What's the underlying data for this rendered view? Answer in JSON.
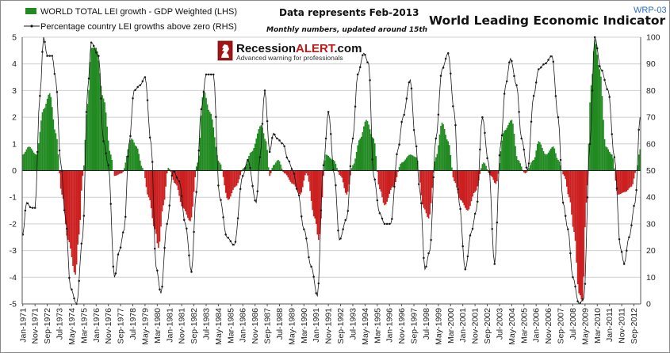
{
  "header": {
    "chart_title": "World Leading Economic Indicator",
    "note_title": "Data represents Feb-2013",
    "note_subtitle": "Monthly numbers, updated around 15th",
    "code": "WRP-03",
    "brand_main": "Recession",
    "brand_accent": "ALERT",
    "brand_suffix": ".com",
    "brand_tagline": "Advanced warning for professionals"
  },
  "colors": {
    "positive": "#218a21",
    "negative": "#cc1f1f",
    "line": "#1a1a1a",
    "grid": "#cfcfcf",
    "code": "#2a6fc4"
  },
  "chart_data": {
    "type": "bar",
    "legend_placement": "top-left",
    "grid": true,
    "series": [
      {
        "name": "WORLD TOTAL LEI growth - GDP Weighted (LHS)",
        "type": "bar",
        "axis": "left",
        "anchors": [
          [
            "1971-01",
            0.6
          ],
          [
            "1971-06",
            0.9
          ],
          [
            "1971-12",
            0.6
          ],
          [
            "1972-06",
            2.3
          ],
          [
            "1972-11",
            2.9
          ],
          [
            "1973-04",
            1.4
          ],
          [
            "1973-09",
            -0.9
          ],
          [
            "1974-02",
            -2.6
          ],
          [
            "1974-08",
            -3.9
          ],
          [
            "1974-11",
            -2.4
          ],
          [
            "1975-02",
            -0.2
          ],
          [
            "1975-06",
            2.5
          ],
          [
            "1975-09",
            4.6
          ],
          [
            "1976-01",
            4.6
          ],
          [
            "1976-07",
            2.7
          ],
          [
            "1977-01",
            0.6
          ],
          [
            "1977-04",
            -0.2
          ],
          [
            "1977-10",
            -0.1
          ],
          [
            "1978-06",
            1.2
          ],
          [
            "1978-10",
            0.9
          ],
          [
            "1979-03",
            0.1
          ],
          [
            "1979-08",
            -1.0
          ],
          [
            "1980-01",
            -2.2
          ],
          [
            "1980-04",
            -2.9
          ],
          [
            "1980-08",
            -1.3
          ],
          [
            "1980-12",
            0.1
          ],
          [
            "1981-06",
            -0.5
          ],
          [
            "1981-12",
            -1.4
          ],
          [
            "1982-06",
            -1.9
          ],
          [
            "1982-12",
            0.3
          ],
          [
            "1983-05",
            3.0
          ],
          [
            "1983-10",
            2.2
          ],
          [
            "1984-06",
            0.3
          ],
          [
            "1985-01",
            -1.1
          ],
          [
            "1985-07",
            -0.6
          ],
          [
            "1986-02",
            0.1
          ],
          [
            "1986-08",
            0.7
          ],
          [
            "1987-04",
            1.7
          ],
          [
            "1987-08",
            1.1
          ],
          [
            "1987-11",
            -0.2
          ],
          [
            "1988-02",
            0.2
          ],
          [
            "1988-06",
            0.4
          ],
          [
            "1988-11",
            -0.1
          ],
          [
            "1989-06",
            -0.5
          ],
          [
            "1989-12",
            -0.9
          ],
          [
            "1990-05",
            -0.1
          ],
          [
            "1990-12",
            -1.8
          ],
          [
            "1991-03",
            -2.6
          ],
          [
            "1991-09",
            0.6
          ],
          [
            "1992-03",
            0.4
          ],
          [
            "1992-09",
            -0.2
          ],
          [
            "1993-02",
            -0.9
          ],
          [
            "1993-07",
            0.2
          ],
          [
            "1994-01",
            1.2
          ],
          [
            "1994-06",
            1.9
          ],
          [
            "1994-12",
            1.2
          ],
          [
            "1995-05",
            -0.7
          ],
          [
            "1995-09",
            -1.3
          ],
          [
            "1996-04",
            -0.6
          ],
          [
            "1996-11",
            0.3
          ],
          [
            "1997-06",
            0.6
          ],
          [
            "1997-11",
            0.5
          ],
          [
            "1998-05",
            -1.4
          ],
          [
            "1998-09",
            -1.8
          ],
          [
            "1999-03",
            0.5
          ],
          [
            "1999-08",
            1.8
          ],
          [
            "2000-01",
            1.1
          ],
          [
            "2000-06",
            -0.4
          ],
          [
            "2000-11",
            -1.1
          ],
          [
            "2001-05",
            -1.5
          ],
          [
            "2001-11",
            -0.8
          ],
          [
            "2002-06",
            0.3
          ],
          [
            "2002-12",
            -0.2
          ],
          [
            "2003-04",
            -0.5
          ],
          [
            "2003-11",
            1.5
          ],
          [
            "2004-05",
            1.9
          ],
          [
            "2004-10",
            0.4
          ],
          [
            "2005-04",
            -0.1
          ],
          [
            "2005-11",
            0.4
          ],
          [
            "2006-03",
            1.1
          ],
          [
            "2006-09",
            0.6
          ],
          [
            "2007-03",
            0.9
          ],
          [
            "2007-07",
            0.4
          ],
          [
            "2007-12",
            -0.2
          ],
          [
            "2008-04",
            -1.0
          ],
          [
            "2008-08",
            -2.3
          ],
          [
            "2008-12",
            -4.6
          ],
          [
            "2009-03",
            -4.9
          ],
          [
            "2009-06",
            -1.2
          ],
          [
            "2009-10",
            3.2
          ],
          [
            "2010-01",
            4.9
          ],
          [
            "2010-05",
            3.8
          ],
          [
            "2010-10",
            0.9
          ],
          [
            "2011-03",
            0.6
          ],
          [
            "2011-08",
            -0.9
          ],
          [
            "2012-02",
            -0.8
          ],
          [
            "2012-07",
            -0.6
          ],
          [
            "2012-11",
            0.0
          ],
          [
            "2013-02",
            0.8
          ]
        ]
      },
      {
        "name": "Percentage country LEI growths above zero (RHS)",
        "type": "line",
        "axis": "right",
        "anchors": [
          [
            "1971-01",
            26
          ],
          [
            "1971-04",
            38
          ],
          [
            "1971-08",
            36
          ],
          [
            "1971-11",
            36
          ],
          [
            "1972-03",
            78
          ],
          [
            "1972-06",
            100
          ],
          [
            "1972-09",
            93
          ],
          [
            "1973-01",
            93
          ],
          [
            "1973-04",
            84
          ],
          [
            "1973-08",
            53
          ],
          [
            "1973-12",
            32
          ],
          [
            "1974-04",
            6
          ],
          [
            "1974-09",
            0
          ],
          [
            "1975-02",
            25
          ],
          [
            "1975-06",
            80
          ],
          [
            "1975-09",
            98
          ],
          [
            "1976-03",
            93
          ],
          [
            "1976-07",
            61
          ],
          [
            "1976-11",
            52
          ],
          [
            "1977-04",
            10
          ],
          [
            "1977-08",
            20
          ],
          [
            "1977-12",
            28
          ],
          [
            "1978-04",
            60
          ],
          [
            "1978-08",
            80
          ],
          [
            "1979-01",
            82
          ],
          [
            "1979-05",
            85
          ],
          [
            "1979-10",
            60
          ],
          [
            "1980-02",
            14
          ],
          [
            "1980-06",
            4
          ],
          [
            "1980-11",
            30
          ],
          [
            "1981-04",
            50
          ],
          [
            "1981-09",
            46
          ],
          [
            "1982-02",
            30
          ],
          [
            "1982-07",
            12
          ],
          [
            "1982-11",
            42
          ],
          [
            "1983-03",
            73
          ],
          [
            "1983-07",
            86
          ],
          [
            "1984-01",
            86
          ],
          [
            "1984-06",
            40
          ],
          [
            "1984-12",
            25
          ],
          [
            "1985-06",
            22
          ],
          [
            "1986-01",
            48
          ],
          [
            "1986-05",
            54
          ],
          [
            "1986-12",
            38
          ],
          [
            "1987-03",
            55
          ],
          [
            "1987-07",
            80
          ],
          [
            "1987-11",
            57
          ],
          [
            "1988-02",
            64
          ],
          [
            "1988-05",
            62
          ],
          [
            "1988-10",
            60
          ],
          [
            "1989-02",
            54
          ],
          [
            "1989-06",
            50
          ],
          [
            "1989-10",
            42
          ],
          [
            "1990-03",
            28
          ],
          [
            "1990-09",
            14
          ],
          [
            "1991-02",
            3
          ],
          [
            "1991-07",
            52
          ],
          [
            "1991-11",
            72
          ],
          [
            "1992-04",
            48
          ],
          [
            "1992-08",
            24
          ],
          [
            "1993-02",
            32
          ],
          [
            "1993-07",
            62
          ],
          [
            "1993-11",
            86
          ],
          [
            "1994-04",
            94
          ],
          [
            "1994-08",
            90
          ],
          [
            "1994-12",
            48
          ],
          [
            "1995-05",
            34
          ],
          [
            "1995-09",
            30
          ],
          [
            "1996-02",
            30
          ],
          [
            "1996-08",
            58
          ],
          [
            "1996-12",
            70
          ],
          [
            "1997-06",
            84
          ],
          [
            "1997-10",
            62
          ],
          [
            "1998-02",
            42
          ],
          [
            "1998-06",
            13
          ],
          [
            "1998-10",
            20
          ],
          [
            "1999-03",
            62
          ],
          [
            "1999-08",
            88
          ],
          [
            "2000-01",
            94
          ],
          [
            "2000-06",
            72
          ],
          [
            "2000-10",
            38
          ],
          [
            "2001-03",
            13
          ],
          [
            "2001-08",
            27
          ],
          [
            "2001-12",
            35
          ],
          [
            "2002-05",
            70
          ],
          [
            "2002-10",
            53
          ],
          [
            "2003-03",
            15
          ],
          [
            "2003-08",
            60
          ],
          [
            "2003-12",
            82
          ],
          [
            "2004-04",
            92
          ],
          [
            "2004-09",
            82
          ],
          [
            "2005-01",
            62
          ],
          [
            "2005-06",
            50
          ],
          [
            "2005-11",
            78
          ],
          [
            "2006-03",
            88
          ],
          [
            "2006-08",
            90
          ],
          [
            "2007-02",
            93
          ],
          [
            "2007-07",
            70
          ],
          [
            "2007-11",
            38
          ],
          [
            "2008-03",
            28
          ],
          [
            "2008-07",
            10
          ],
          [
            "2008-12",
            0
          ],
          [
            "2009-04",
            2
          ],
          [
            "2009-09",
            60
          ],
          [
            "2010-01",
            100
          ],
          [
            "2010-06",
            88
          ],
          [
            "2010-12",
            80
          ],
          [
            "2011-05",
            55
          ],
          [
            "2011-10",
            21
          ],
          [
            "2012-01",
            15
          ],
          [
            "2012-05",
            25
          ],
          [
            "2012-10",
            38
          ],
          [
            "2013-02",
            70
          ]
        ]
      }
    ],
    "x_range": [
      "1971-01",
      "2013-02"
    ],
    "left_axis": {
      "min": -5,
      "max": 5,
      "ticks": [
        5,
        4,
        3,
        2,
        1,
        0,
        -1,
        -2,
        -3,
        -4,
        -5
      ]
    },
    "right_axis": {
      "min": 0,
      "max": 100,
      "ticks": [
        100,
        90,
        80,
        70,
        60,
        50,
        40,
        30,
        20,
        10,
        0
      ]
    },
    "x_tick_labels": [
      "Jan-1971",
      "Nov-1971",
      "Sep-1972",
      "Jul-1973",
      "May-1974",
      "Mar-1975",
      "Jan-1976",
      "Nov-1976",
      "Sep-1977",
      "Jul-1978",
      "May-1979",
      "Mar-1980",
      "Jan-1981",
      "Nov-1981",
      "Sep-1982",
      "Jul-1983",
      "May-1984",
      "Mar-1985",
      "Jan-1986",
      "Nov-1986",
      "Sep-1987",
      "Jul-1988",
      "May-1989",
      "Mar-1990",
      "Jan-1991",
      "Nov-1991",
      "Sep-1992",
      "Jul-1993",
      "May-1994",
      "Mar-1995",
      "Jan-1996",
      "Nov-1996",
      "Sep-1997",
      "Jul-1998",
      "May-1999",
      "Mar-2000",
      "Jan-2001",
      "Nov-2001",
      "Sep-2002",
      "Jul-2003",
      "May-2004",
      "Mar-2005",
      "Jan-2006",
      "Nov-2006",
      "Sep-2007",
      "Jul-2008",
      "May-2009",
      "Mar-2010",
      "Jan-2011",
      "Nov-2011",
      "Sep-2012"
    ]
  }
}
